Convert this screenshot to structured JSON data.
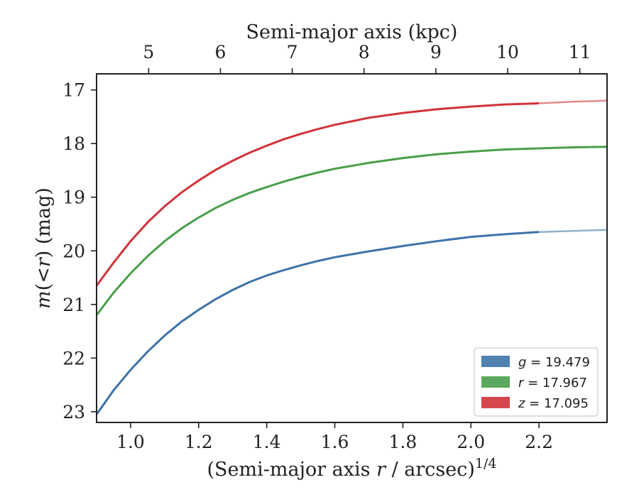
{
  "chart_data": {
    "type": "line",
    "title": "",
    "xlabel": "(Semi-major axis r / arcsec)^1/4",
    "xlabel_parts": {
      "pre": "(Semi-major axis ",
      "var": "r",
      "post": " / arcsec)",
      "sup": "1/4"
    },
    "ylabel": "m(<r) (mag)",
    "ylabel_parts": {
      "var": "m",
      "mid": "(<",
      "var2": "r",
      "post": ") (mag)"
    },
    "top_xlabel": "Semi-major axis (kpc)",
    "xlim": [
      0.9,
      2.4
    ],
    "ylim": [
      23.2,
      16.7
    ],
    "y_inverted": true,
    "xticks": [
      1.0,
      1.2,
      1.4,
      1.6,
      1.8,
      2.0,
      2.2
    ],
    "xtick_labels": [
      "1.0",
      "1.2",
      "1.4",
      "1.6",
      "1.8",
      "2.0",
      "2.2"
    ],
    "yticks": [
      17,
      18,
      19,
      20,
      21,
      22,
      23
    ],
    "ytick_labels": [
      "17",
      "18",
      "19",
      "20",
      "21",
      "22",
      "23"
    ],
    "top_xticks_kpc": [
      5,
      6,
      7,
      8,
      9,
      10,
      11
    ],
    "top_xtick_labels": [
      "5",
      "6",
      "7",
      "8",
      "9",
      "10",
      "11"
    ],
    "top_xtick_positions": [
      1.053,
      1.264,
      1.475,
      1.686,
      1.897,
      2.108,
      2.32
    ],
    "grid": false,
    "legend_position": "bottom-right",
    "series": [
      {
        "name": "g = 19.479",
        "band": "g",
        "mag": "19.479",
        "color": "#3d73a8",
        "faint_color": "#8fb2cf",
        "solid_until": 2.2,
        "x": [
          0.9,
          0.95,
          1.0,
          1.05,
          1.1,
          1.15,
          1.2,
          1.25,
          1.3,
          1.35,
          1.4,
          1.45,
          1.5,
          1.55,
          1.6,
          1.7,
          1.8,
          1.9,
          2.0,
          2.1,
          2.2,
          2.3,
          2.4
        ],
        "y": [
          23.05,
          22.6,
          22.22,
          21.88,
          21.58,
          21.32,
          21.1,
          20.9,
          20.73,
          20.58,
          20.46,
          20.36,
          20.27,
          20.19,
          20.12,
          20.01,
          19.91,
          19.82,
          19.74,
          19.69,
          19.65,
          19.63,
          19.61
        ]
      },
      {
        "name": "r = 17.967",
        "band": "r",
        "mag": "17.967",
        "color": "#4a9e4a",
        "faint_color": "#4a9e4a",
        "solid_until": 2.4,
        "x": [
          0.9,
          0.95,
          1.0,
          1.05,
          1.1,
          1.15,
          1.2,
          1.25,
          1.3,
          1.35,
          1.4,
          1.45,
          1.5,
          1.55,
          1.6,
          1.7,
          1.8,
          1.9,
          2.0,
          2.1,
          2.2,
          2.3,
          2.4
        ],
        "y": [
          21.2,
          20.78,
          20.42,
          20.1,
          19.82,
          19.58,
          19.38,
          19.2,
          19.05,
          18.92,
          18.81,
          18.71,
          18.62,
          18.54,
          18.47,
          18.36,
          18.27,
          18.2,
          18.15,
          18.11,
          18.09,
          18.07,
          18.06
        ]
      },
      {
        "name": "z = 17.095",
        "band": "z",
        "mag": "17.095",
        "color": "#d1333a",
        "faint_color": "#e38a8c",
        "solid_until": 2.2,
        "x": [
          0.9,
          0.95,
          1.0,
          1.05,
          1.1,
          1.15,
          1.2,
          1.25,
          1.3,
          1.35,
          1.4,
          1.45,
          1.5,
          1.55,
          1.6,
          1.7,
          1.8,
          1.9,
          2.0,
          2.1,
          2.2,
          2.3,
          2.4
        ],
        "y": [
          20.65,
          20.22,
          19.82,
          19.47,
          19.17,
          18.91,
          18.69,
          18.49,
          18.32,
          18.17,
          18.04,
          17.92,
          17.82,
          17.73,
          17.65,
          17.52,
          17.43,
          17.36,
          17.31,
          17.27,
          17.25,
          17.22,
          17.2
        ]
      }
    ]
  }
}
